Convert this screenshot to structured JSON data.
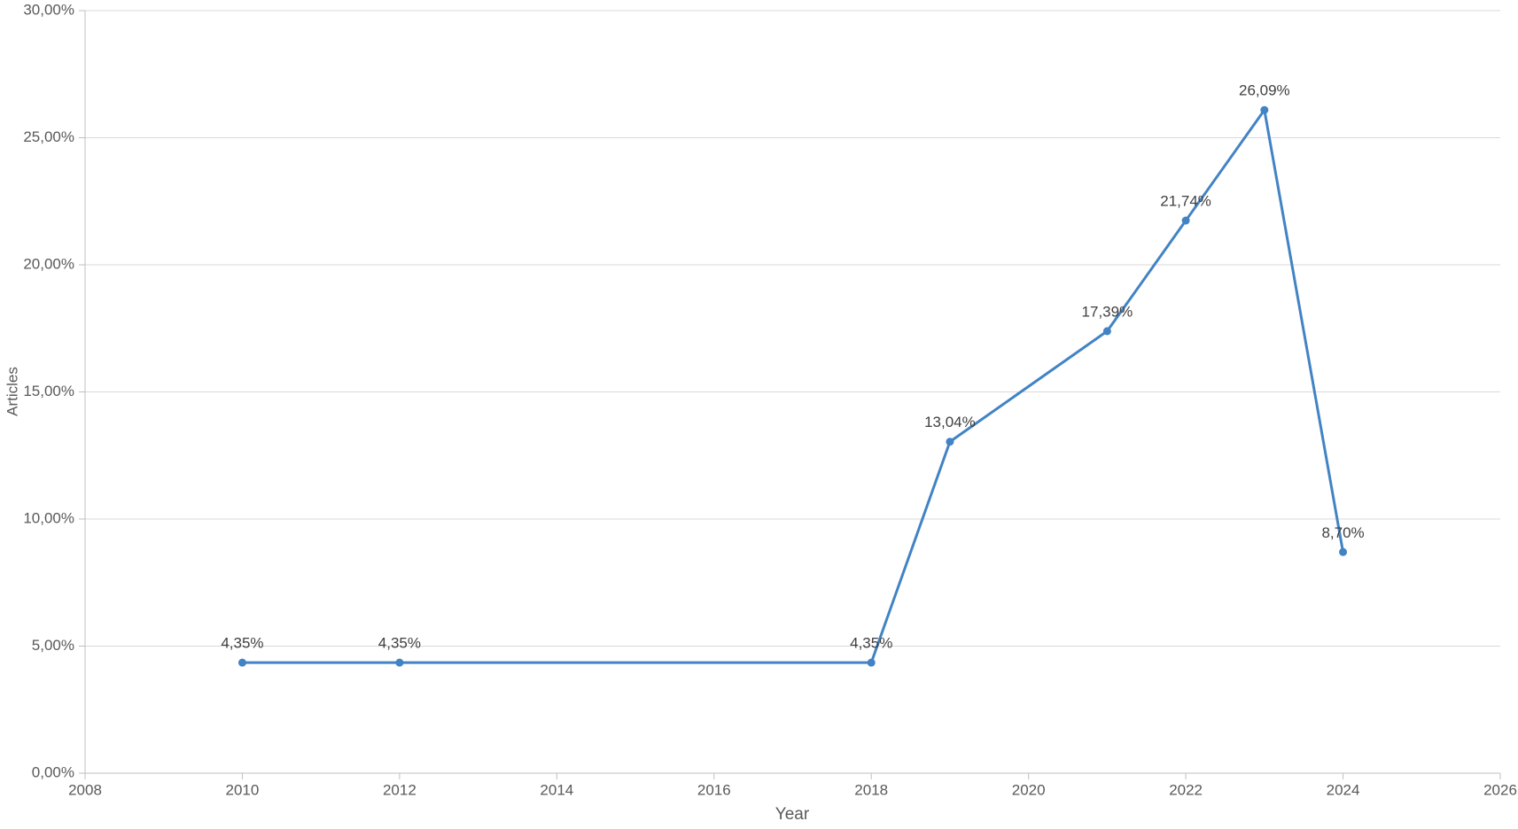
{
  "chart_data": {
    "type": "line",
    "title": "",
    "xlabel": "Year",
    "ylabel": "Articles",
    "xlim": [
      2008,
      2026
    ],
    "ylim": [
      0,
      30
    ],
    "grid": "horizontal-only",
    "legend_position": "none",
    "x_ticks": [
      {
        "v": 2008,
        "label": "2008"
      },
      {
        "v": 2010,
        "label": "2010"
      },
      {
        "v": 2012,
        "label": "2012"
      },
      {
        "v": 2014,
        "label": "2014"
      },
      {
        "v": 2016,
        "label": "2016"
      },
      {
        "v": 2018,
        "label": "2018"
      },
      {
        "v": 2020,
        "label": "2020"
      },
      {
        "v": 2022,
        "label": "2022"
      },
      {
        "v": 2024,
        "label": "2024"
      },
      {
        "v": 2026,
        "label": "2026"
      }
    ],
    "y_ticks": [
      {
        "v": 0,
        "label": "0,00%"
      },
      {
        "v": 5,
        "label": "5,00%"
      },
      {
        "v": 10,
        "label": "10,00%"
      },
      {
        "v": 15,
        "label": "15,00%"
      },
      {
        "v": 20,
        "label": "20,00%"
      },
      {
        "v": 25,
        "label": "25,00%"
      },
      {
        "v": 30,
        "label": "30,00%"
      }
    ],
    "series": [
      {
        "name": "Articles",
        "points": [
          {
            "x": 2010,
            "y": 4.35,
            "label": "4,35%"
          },
          {
            "x": 2012,
            "y": 4.35,
            "label": "4,35%"
          },
          {
            "x": 2018,
            "y": 4.35,
            "label": "4,35%"
          },
          {
            "x": 2019,
            "y": 13.04,
            "label": "13,04%"
          },
          {
            "x": 2021,
            "y": 17.39,
            "label": "17,39%"
          },
          {
            "x": 2022,
            "y": 21.74,
            "label": "21,74%"
          },
          {
            "x": 2023,
            "y": 26.09,
            "label": "26,09%"
          },
          {
            "x": 2024,
            "y": 8.7,
            "label": "8,70%"
          }
        ]
      }
    ],
    "colors": {
      "line": "#4183C4",
      "marker": "#4183C4",
      "gridline": "#D9D9D9",
      "axis": "#BFBFBF",
      "tick_text": "#595959",
      "axis_title_text": "#595959",
      "data_label_text": "#404040"
    }
  }
}
